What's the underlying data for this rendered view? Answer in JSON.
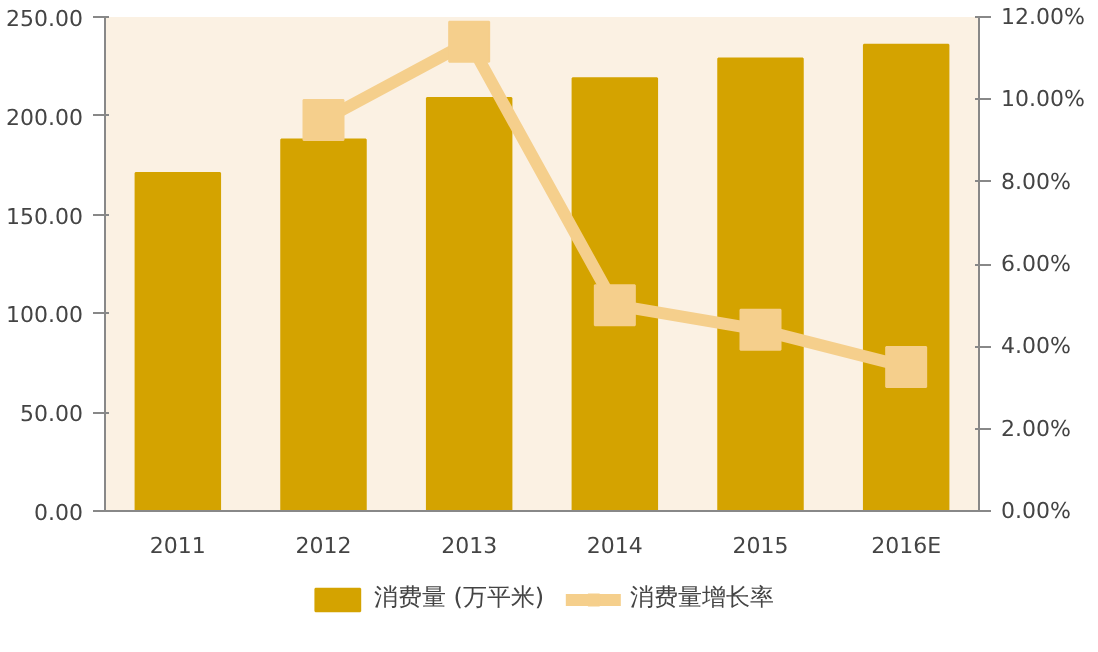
{
  "chart_data": {
    "type": "bar",
    "categories": [
      "2011",
      "2012",
      "2013",
      "2014",
      "2015",
      "2016E"
    ],
    "series": [
      {
        "name": "消费量 (万平米)",
        "color": "#d4a300",
        "values": [
          171,
          188,
          209,
          219,
          229,
          236
        ]
      },
      {
        "name": "消费量增长率",
        "type": "line",
        "axis": "y2",
        "color": "#f5cf8c",
        "marker": "square",
        "values": [
          null,
          9.5,
          11.4,
          5.0,
          4.4,
          3.5
        ]
      }
    ],
    "ylim": [
      0,
      250
    ],
    "yticks": [
      {
        "value": 0,
        "label": "0.00"
      },
      {
        "value": 50,
        "label": "50.00"
      },
      {
        "value": 100,
        "label": "100.00"
      },
      {
        "value": 150,
        "label": "150.00"
      },
      {
        "value": 200,
        "label": "200.00"
      },
      {
        "value": 250,
        "label": "250.00"
      }
    ],
    "y2lim": [
      0,
      12
    ],
    "y2ticks": [
      {
        "value": 0,
        "label": "0.00%"
      },
      {
        "value": 2,
        "label": "2.00%"
      },
      {
        "value": 4,
        "label": "4.00%"
      },
      {
        "value": 6,
        "label": "6.00%"
      },
      {
        "value": 8,
        "label": "8.00%"
      },
      {
        "value": 10,
        "label": "10.00%"
      },
      {
        "value": 12,
        "label": "12.00%"
      }
    ],
    "grid": false,
    "legend": "bottom"
  }
}
